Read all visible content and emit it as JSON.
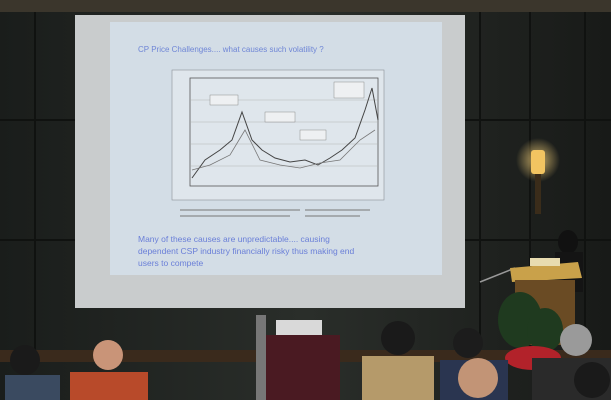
{
  "slide": {
    "title": "CP Price Challenges.... what causes such volatility ?",
    "body_lines": [
      "Many of these causes are unpredictable.... causing",
      "dependent CSP industry financially risky thus making end",
      "users to compete"
    ]
  }
}
